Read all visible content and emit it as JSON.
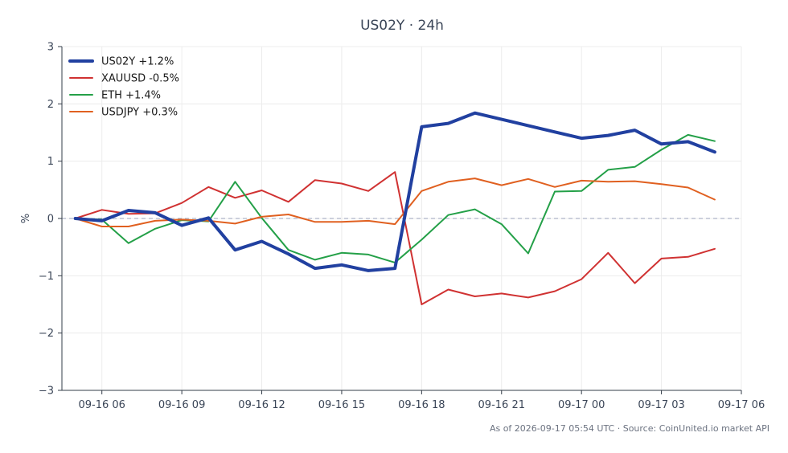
{
  "chart_data": {
    "type": "line",
    "title": "US02Y · 24h",
    "ylabel": "%",
    "xlabel": "",
    "ylim": [
      -3,
      3
    ],
    "xlim": [
      "2026-09-16 04:30",
      "2026-09-17 06:00"
    ],
    "x_ticks": [
      "09-16 06",
      "09-16 09",
      "09-16 12",
      "09-16 15",
      "09-16 18",
      "09-16 21",
      "09-17 00",
      "09-17 03",
      "09-17 06"
    ],
    "y_ticks": [
      "3",
      "2",
      "1",
      "0",
      "−1",
      "−2",
      "−3"
    ],
    "grid": true,
    "legend_position": "top-left",
    "zero_line": "dashed",
    "x": [
      "2026-09-16 05:00",
      "2026-09-16 06:00",
      "2026-09-16 07:00",
      "2026-09-16 08:00",
      "2026-09-16 09:00",
      "2026-09-16 10:00",
      "2026-09-16 11:00",
      "2026-09-16 12:00",
      "2026-09-16 13:00",
      "2026-09-16 14:00",
      "2026-09-16 15:00",
      "2026-09-16 16:00",
      "2026-09-16 17:00",
      "2026-09-16 18:00",
      "2026-09-16 19:00",
      "2026-09-16 20:00",
      "2026-09-16 21:00",
      "2026-09-16 22:00",
      "2026-09-16 23:00",
      "2026-09-17 00:00",
      "2026-09-17 01:00",
      "2026-09-17 02:00",
      "2026-09-17 03:00",
      "2026-09-17 04:00",
      "2026-09-17 05:00"
    ],
    "series": [
      {
        "name": "US02Y +1.2%",
        "color": "#2140a0",
        "emphasis": true,
        "values": [
          0.0,
          -0.04,
          0.14,
          0.1,
          -0.12,
          0.01,
          -0.55,
          -0.4,
          -0.62,
          -0.87,
          -0.81,
          -0.91,
          -0.87,
          1.6,
          1.66,
          1.84,
          1.73,
          1.62,
          1.51,
          1.4,
          1.45,
          1.54,
          1.3,
          1.34,
          1.16
        ]
      },
      {
        "name": "XAUUSD -0.5%",
        "color": "#d03232",
        "values": [
          0.0,
          0.15,
          0.08,
          0.09,
          0.27,
          0.55,
          0.36,
          0.49,
          0.29,
          0.67,
          0.61,
          0.48,
          0.81,
          -1.5,
          -1.24,
          -1.36,
          -1.31,
          -1.38,
          -1.27,
          -1.06,
          -0.6,
          -1.13,
          -0.7,
          -0.67,
          -0.53
        ]
      },
      {
        "name": "ETH +1.4%",
        "color": "#24a048",
        "values": [
          0.0,
          -0.02,
          -0.43,
          -0.18,
          -0.03,
          -0.05,
          0.64,
          0.01,
          -0.55,
          -0.72,
          -0.6,
          -0.63,
          -0.77,
          -0.37,
          0.06,
          0.16,
          -0.1,
          -0.61,
          0.47,
          0.48,
          0.85,
          0.9,
          1.2,
          1.46,
          1.35
        ]
      },
      {
        "name": "USDJPY +0.3%",
        "color": "#e06020",
        "values": [
          0.0,
          -0.14,
          -0.14,
          -0.04,
          -0.02,
          -0.04,
          -0.09,
          0.03,
          0.07,
          -0.06,
          -0.06,
          -0.04,
          -0.1,
          0.48,
          0.64,
          0.7,
          0.58,
          0.69,
          0.55,
          0.66,
          0.64,
          0.65,
          0.6,
          0.54,
          0.33
        ]
      }
    ]
  },
  "footer": {
    "text": "As of 2026-09-17 05:54 UTC · Source: CoinUnited.io market API"
  }
}
